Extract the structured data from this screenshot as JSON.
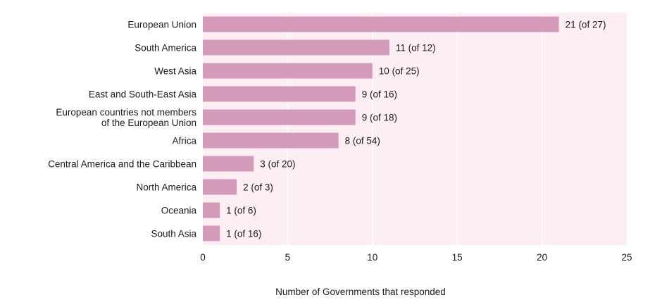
{
  "chart_data": {
    "type": "bar",
    "orientation": "horizontal",
    "title": "",
    "xlabel": "Number of Governments that responded",
    "ylabel": "",
    "xlim": [
      0,
      25
    ],
    "xticks": [
      0,
      5,
      10,
      15,
      20,
      25
    ],
    "grid": "vertical",
    "categories": [
      [
        "European Union"
      ],
      [
        "South America"
      ],
      [
        "West Asia"
      ],
      [
        "East and South-East Asia"
      ],
      [
        "European countries not members",
        "of the European Union"
      ],
      [
        "Africa"
      ],
      [
        "Central America and the Caribbean"
      ],
      [
        "North America"
      ],
      [
        "Oceania"
      ],
      [
        "South Asia"
      ]
    ],
    "values": [
      21,
      11,
      10,
      9,
      9,
      8,
      3,
      2,
      1,
      1
    ],
    "data_labels": [
      "21 (of 27)",
      "11 (of 12)",
      "10 (of 25)",
      "9 (of 16)",
      "9 (of 18)",
      "8 (of 54)",
      "3 (of 20)",
      "2 (of 3)",
      "1 (of 6)",
      "1 (of 16)"
    ],
    "colors": {
      "bar": "#d49ab9",
      "plot_background": "#fdeef3",
      "grid": "#ffffff",
      "text": "#1a1a1a"
    }
  }
}
